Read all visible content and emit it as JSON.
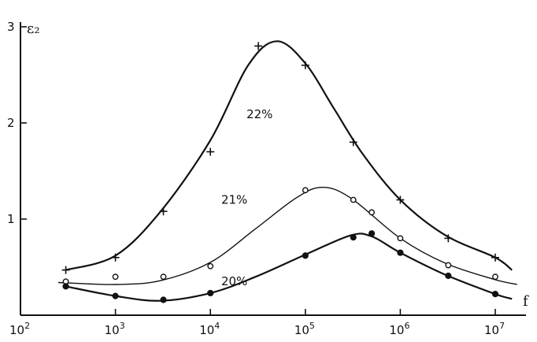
{
  "chart_data": {
    "type": "scatter",
    "ylabel": "ε₂",
    "xlabel": "f",
    "x_scale": "log",
    "xlim": [
      100,
      20000000
    ],
    "ylim": [
      0,
      3
    ],
    "x_ticks": [
      {
        "value": 100,
        "base": "10",
        "exp": "2"
      },
      {
        "value": 1000,
        "base": "10",
        "exp": "3"
      },
      {
        "value": 10000,
        "base": "10",
        "exp": "4"
      },
      {
        "value": 100000,
        "base": "10",
        "exp": "5"
      },
      {
        "value": 1000000,
        "base": "10",
        "exp": "6"
      },
      {
        "value": 10000000,
        "base": "10",
        "exp": "7"
      }
    ],
    "y_ticks": [
      {
        "value": 1,
        "label": "1"
      },
      {
        "value": 2,
        "label": "2"
      },
      {
        "value": 3,
        "label": "3"
      }
    ],
    "grid": false,
    "series": [
      {
        "name": "22%",
        "marker": "plus",
        "label_at": {
          "x": 24000,
          "y": 2.05
        },
        "points": [
          {
            "x": 300,
            "y": 0.47
          },
          {
            "x": 1000,
            "y": 0.6
          },
          {
            "x": 3200,
            "y": 1.08
          },
          {
            "x": 10000,
            "y": 1.7
          },
          {
            "x": 32000,
            "y": 2.8
          },
          {
            "x": 100000,
            "y": 2.6
          },
          {
            "x": 320000,
            "y": 1.8
          },
          {
            "x": 1000000,
            "y": 1.2
          },
          {
            "x": 3200000,
            "y": 0.8
          },
          {
            "x": 10000000,
            "y": 0.6
          }
        ],
        "fit": [
          {
            "x": 300,
            "y": 0.47
          },
          {
            "x": 1000,
            "y": 0.62
          },
          {
            "x": 3000,
            "y": 1.08
          },
          {
            "x": 10000,
            "y": 1.82
          },
          {
            "x": 25000,
            "y": 2.6
          },
          {
            "x": 50000,
            "y": 2.85
          },
          {
            "x": 100000,
            "y": 2.62
          },
          {
            "x": 200000,
            "y": 2.15
          },
          {
            "x": 400000,
            "y": 1.68
          },
          {
            "x": 1000000,
            "y": 1.2
          },
          {
            "x": 3000000,
            "y": 0.83
          },
          {
            "x": 10000000,
            "y": 0.6
          },
          {
            "x": 15000000,
            "y": 0.47
          }
        ]
      },
      {
        "name": "21%",
        "marker": "open-circle",
        "label_at": {
          "x": 13000,
          "y": 1.16
        },
        "points": [
          {
            "x": 300,
            "y": 0.35
          },
          {
            "x": 1000,
            "y": 0.4
          },
          {
            "x": 3200,
            "y": 0.4
          },
          {
            "x": 10000,
            "y": 0.51
          },
          {
            "x": 100000,
            "y": 1.3
          },
          {
            "x": 320000,
            "y": 1.2
          },
          {
            "x": 500000,
            "y": 1.07
          },
          {
            "x": 1000000,
            "y": 0.8
          },
          {
            "x": 3200000,
            "y": 0.52
          },
          {
            "x": 10000000,
            "y": 0.4
          }
        ],
        "fit": [
          {
            "x": 250,
            "y": 0.34
          },
          {
            "x": 1000,
            "y": 0.32
          },
          {
            "x": 3000,
            "y": 0.36
          },
          {
            "x": 10000,
            "y": 0.55
          },
          {
            "x": 30000,
            "y": 0.9
          },
          {
            "x": 80000,
            "y": 1.22
          },
          {
            "x": 150000,
            "y": 1.33
          },
          {
            "x": 300000,
            "y": 1.22
          },
          {
            "x": 1000000,
            "y": 0.8
          },
          {
            "x": 3000000,
            "y": 0.54
          },
          {
            "x": 10000000,
            "y": 0.37
          },
          {
            "x": 17000000,
            "y": 0.32
          }
        ]
      },
      {
        "name": "20%",
        "marker": "filled-circle",
        "label_at": {
          "x": 13000,
          "y": 0.31
        },
        "points": [
          {
            "x": 300,
            "y": 0.3
          },
          {
            "x": 1000,
            "y": 0.2
          },
          {
            "x": 3200,
            "y": 0.16
          },
          {
            "x": 10000,
            "y": 0.23
          },
          {
            "x": 100000,
            "y": 0.62
          },
          {
            "x": 320000,
            "y": 0.81
          },
          {
            "x": 500000,
            "y": 0.85
          },
          {
            "x": 1000000,
            "y": 0.65
          },
          {
            "x": 3200000,
            "y": 0.41
          },
          {
            "x": 10000000,
            "y": 0.22
          }
        ],
        "fit": [
          {
            "x": 300,
            "y": 0.3
          },
          {
            "x": 1000,
            "y": 0.2
          },
          {
            "x": 3000,
            "y": 0.15
          },
          {
            "x": 10000,
            "y": 0.23
          },
          {
            "x": 30000,
            "y": 0.4
          },
          {
            "x": 100000,
            "y": 0.63
          },
          {
            "x": 300000,
            "y": 0.83
          },
          {
            "x": 500000,
            "y": 0.82
          },
          {
            "x": 1000000,
            "y": 0.65
          },
          {
            "x": 3000000,
            "y": 0.42
          },
          {
            "x": 10000000,
            "y": 0.22
          },
          {
            "x": 15000000,
            "y": 0.17
          }
        ]
      }
    ]
  }
}
